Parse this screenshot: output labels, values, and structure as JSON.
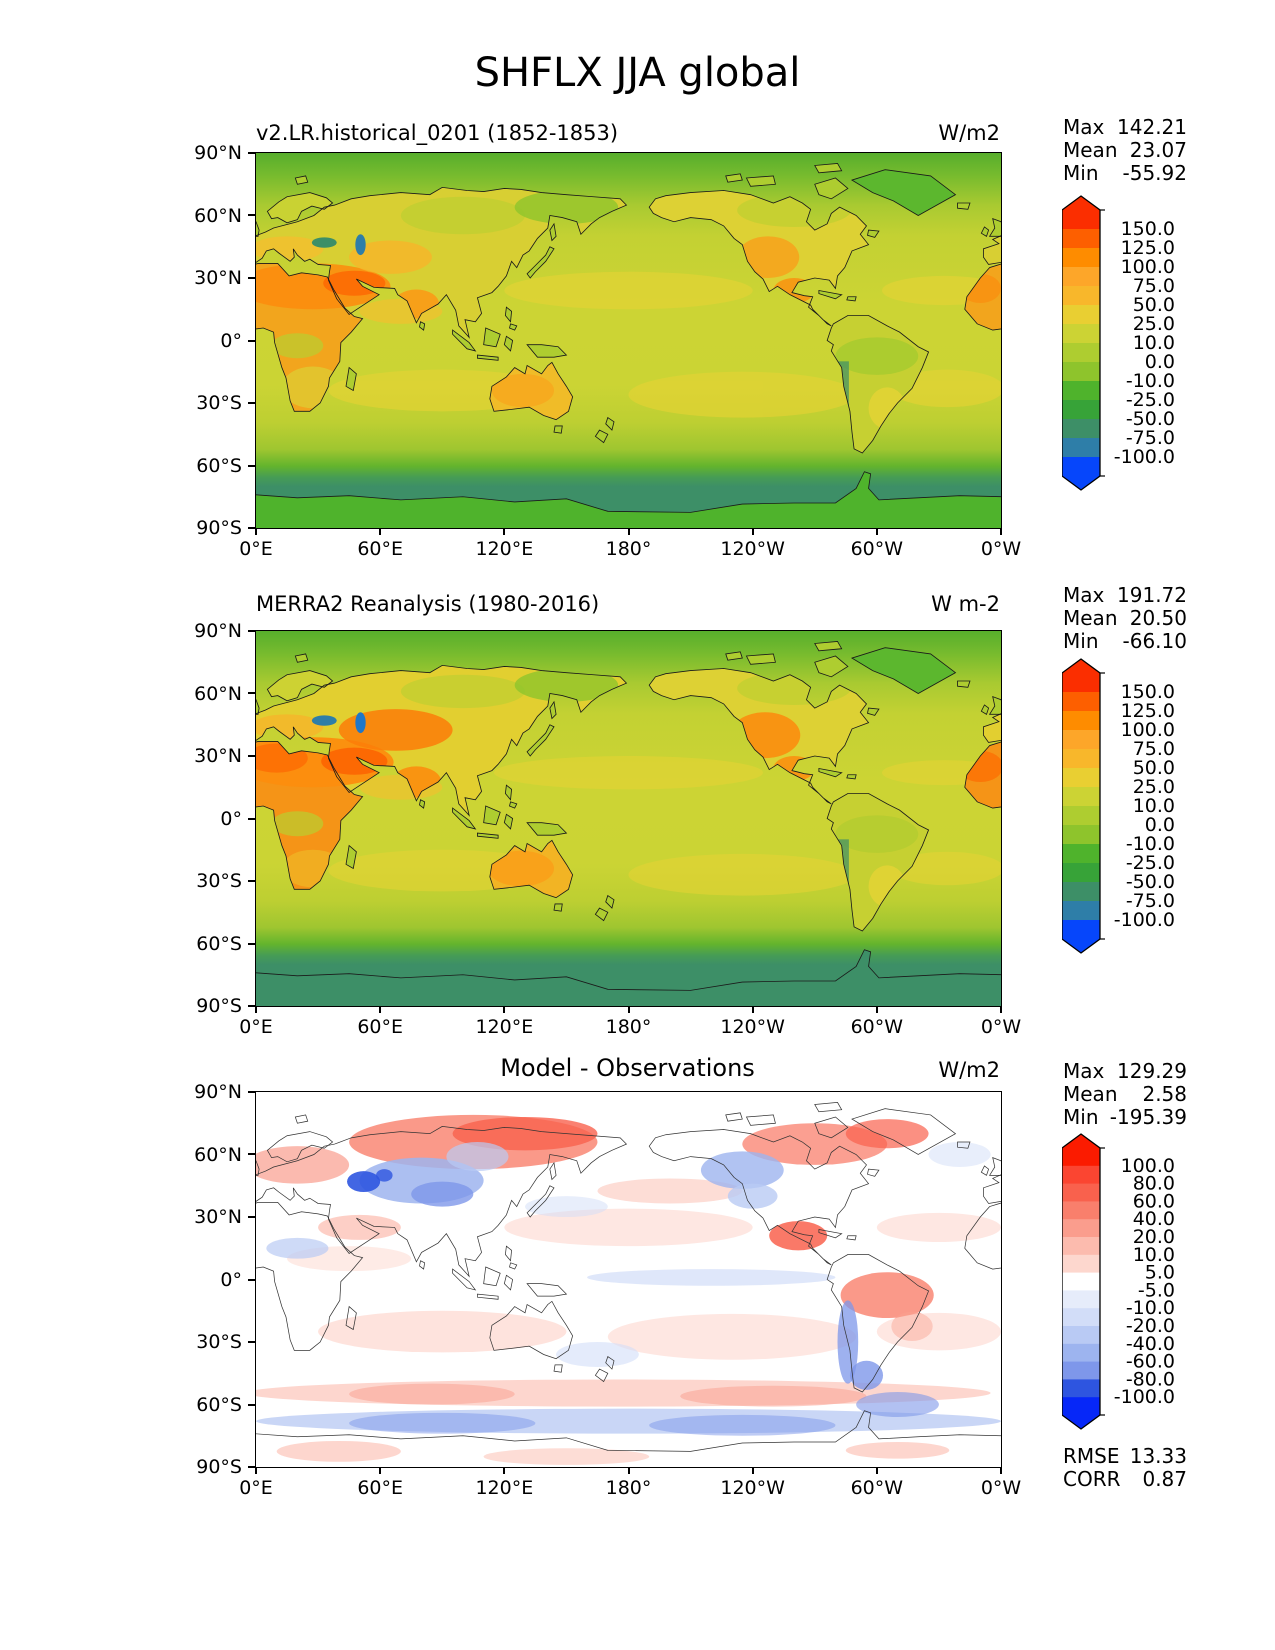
{
  "labels": {
    "max": "Max",
    "mean": "Mean",
    "min": "Min",
    "rmse": "RMSE",
    "corr": "CORR"
  },
  "colorbars": {
    "flux": {
      "tick_labels": [
        "150.0",
        "125.0",
        "100.0",
        "75.0",
        "50.0",
        "25.0",
        "10.0",
        "0.0",
        "-10.0",
        "-25.0",
        "-50.0",
        "-75.0",
        "-100.0"
      ],
      "band_colors": [
        "#fb2e00",
        "#fd5f00",
        "#fe8c00",
        "#fda629",
        "#f8b72b",
        "#e9cf32",
        "#ccd334",
        "#aecd30",
        "#8ec42c",
        "#4fb32c",
        "#37a338",
        "#3d8f67",
        "#2e7ea8",
        "#0646fb"
      ]
    },
    "diff": {
      "tick_labels": [
        "100.0",
        "80.0",
        "60.0",
        "40.0",
        "20.0",
        "10.0",
        "5.0",
        "-5.0",
        "-10.0",
        "-20.0",
        "-40.0",
        "-60.0",
        "-80.0",
        "-100.0"
      ],
      "band_colors": [
        "#fb1b00",
        "#fb4531",
        "#f9614d",
        "#f97f6c",
        "#fa9d8d",
        "#fcbbae",
        "#fdd7ce",
        "#ffffff",
        "#e6ecfa",
        "#d2ddf8",
        "#b9caf4",
        "#9db4ef",
        "#7e97ea",
        "#2e55e0",
        "#0627f8"
      ]
    }
  },
  "chart_data": {
    "type": "heatmap",
    "title": "SHFLX JJA global",
    "variable": "SHFLX",
    "season": "JJA",
    "region": "global",
    "projection": "equirectangular, longitude 0E-360E",
    "x_ticks": [
      "0°E",
      "60°E",
      "120°E",
      "180°",
      "120°W",
      "60°W",
      "0°W"
    ],
    "y_ticks": [
      "90°N",
      "60°N",
      "30°N",
      "0°",
      "30°S",
      "60°S",
      "90°S"
    ],
    "panels": [
      {
        "name": "model",
        "title": "v2.LR.historical_0201 (1852-1853)",
        "units": "W/m2",
        "stats": {
          "max": "142.21",
          "mean": "23.07",
          "min": "-55.92"
        },
        "colorbar_levels": [
          -100,
          -75,
          -50,
          -25,
          -10,
          0,
          10,
          25,
          50,
          75,
          100,
          125,
          150
        ]
      },
      {
        "name": "observation",
        "title": "MERRA2 Reanalysis (1980-2016)",
        "units": "W m-2",
        "stats": {
          "max": "191.72",
          "mean": "20.50",
          "min": "-66.10"
        },
        "colorbar_levels": [
          -100,
          -75,
          -50,
          -25,
          -10,
          0,
          10,
          25,
          50,
          75,
          100,
          125,
          150
        ]
      },
      {
        "name": "difference",
        "title": "Model - Observations",
        "units": "W/m2",
        "stats": {
          "max": "129.29",
          "mean": "2.58",
          "min": "-195.39"
        },
        "colorbar_levels": [
          -100,
          -80,
          -60,
          -40,
          -20,
          -10,
          -5,
          5,
          10,
          20,
          40,
          60,
          80,
          100
        ],
        "metrics": {
          "rmse": "13.33",
          "corr": "0.87"
        }
      }
    ]
  }
}
